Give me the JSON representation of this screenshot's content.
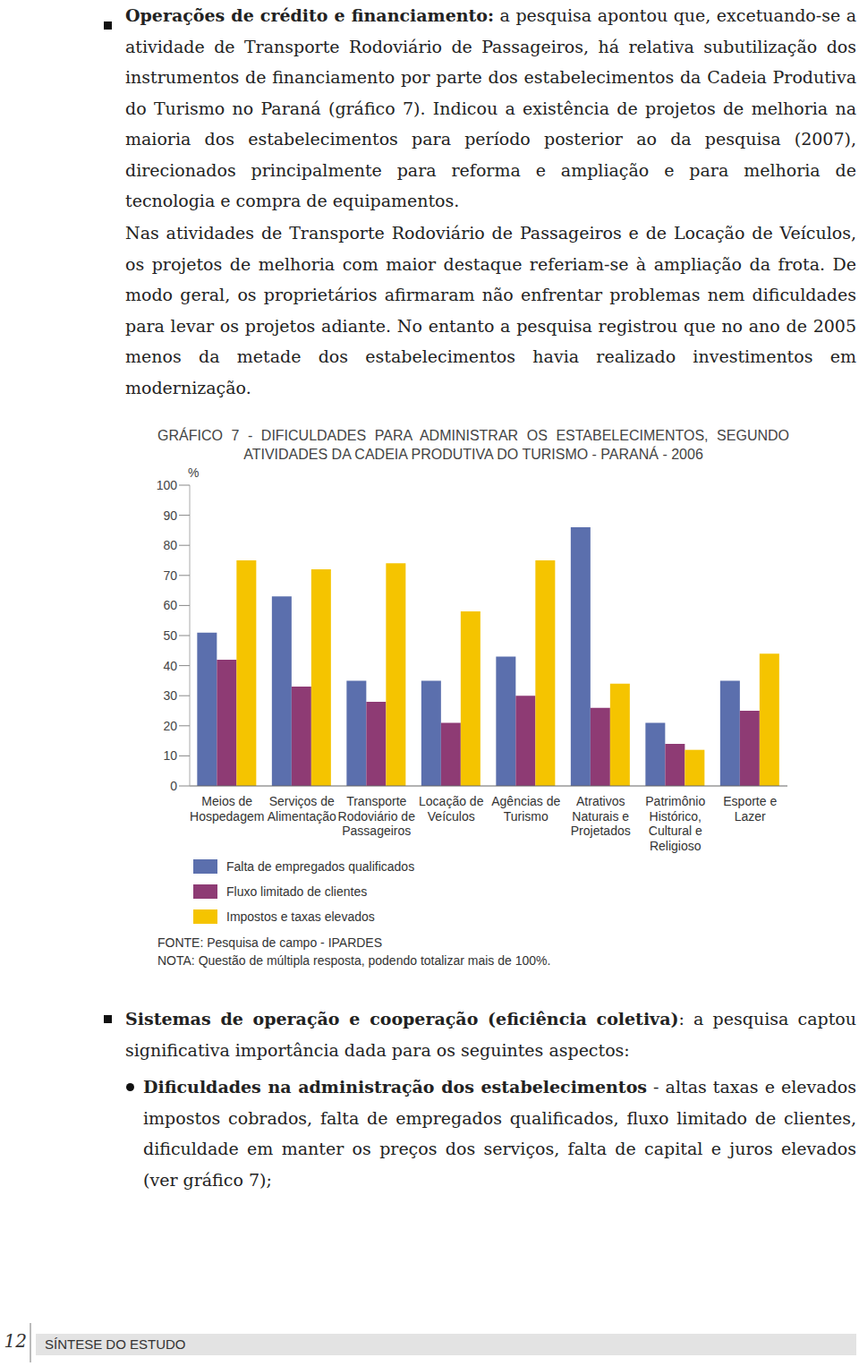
{
  "bullet_1": {
    "lead": "Operações de crédito e financiamento:",
    "text": "a pesquisa apontou que, excetuando-se a atividade de Transporte Rodoviário de Passageiros, há relativa subutilização dos instrumentos de financiamento por parte dos estabelecimentos da Cadeia Produtiva do Turismo no Paraná (gráfico 7). Indicou a existência de projetos de melhoria na maioria dos estabelecimentos para período posterior ao da pesquisa (2007), direcionados principalmente para reforma e ampliação e para melhoria de tecnologia e compra de equipamentos."
  },
  "paragraph_2": "Nas atividades de Transporte Rodoviário de Passageiros e de Locação de Veículos, os projetos de melhoria com maior destaque referiam-se à ampliação da frota. De modo geral, os proprietários afirmaram não enfrentar problemas nem dificuldades para levar os projetos adiante. No entanto a pesquisa registrou que no ano de 2005 menos da metade dos estabelecimentos havia realizado investimentos em modernização.",
  "chart_data": {
    "type": "bar",
    "title": "GRÁFICO 7 - DIFICULDADES PARA ADMINISTRAR OS ESTABELECIMENTOS, SEGUNDO ATIVIDADES DA CADEIA PRODUTIVA DO TURISMO - PARANÁ - 2006",
    "y_label": "%",
    "categories": [
      "Meios de Hospedagem",
      "Serviços de Alimentação",
      "Transporte Rodoviário de Passageiros",
      "Locação de Veículos",
      "Agências de Turismo",
      "Atrativos Naturais e Projetados",
      "Patrimônio Histórico, Cultural e Religioso",
      "Esporte e Lazer"
    ],
    "series": [
      {
        "name": "Falta de empregados qualificados",
        "color": "#5b6fad",
        "values": [
          51,
          63,
          35,
          35,
          43,
          86,
          21,
          35
        ]
      },
      {
        "name": "Fluxo limitado de clientes",
        "color": "#8e3b74",
        "values": [
          42,
          33,
          28,
          21,
          30,
          26,
          14,
          25
        ]
      },
      {
        "name": "Impostos e taxas elevados",
        "color": "#f5c400",
        "values": [
          75,
          72,
          74,
          58,
          75,
          34,
          12,
          44
        ]
      }
    ],
    "ylim": [
      0,
      100
    ],
    "yticks": [
      0,
      10,
      20,
      30,
      40,
      50,
      60,
      70,
      80,
      90,
      100
    ],
    "grid": false,
    "legend": "bottom-left",
    "source": "FONTE: Pesquisa de campo - IPARDES",
    "note": "NOTA: Questão de múltipla resposta, podendo totalizar mais de 100%."
  },
  "bullet_2": {
    "lead": "Sistemas de operação e cooperação (eficiência coletiva)",
    "text": ": a pesquisa captou significativa importância dada para os seguintes aspectos:"
  },
  "sub_bullet": {
    "lead": "Dificuldades na administração dos estabelecimentos",
    "text": " - altas taxas e elevados impostos cobrados, falta de empregados qualificados, fluxo limitado de clientes, dificuldade em manter os preços dos serviços, falta de capital e juros elevados (ver gráfico 7);"
  },
  "footer": {
    "page_number": "12",
    "text": "SÍNTESE DO ESTUDO"
  }
}
